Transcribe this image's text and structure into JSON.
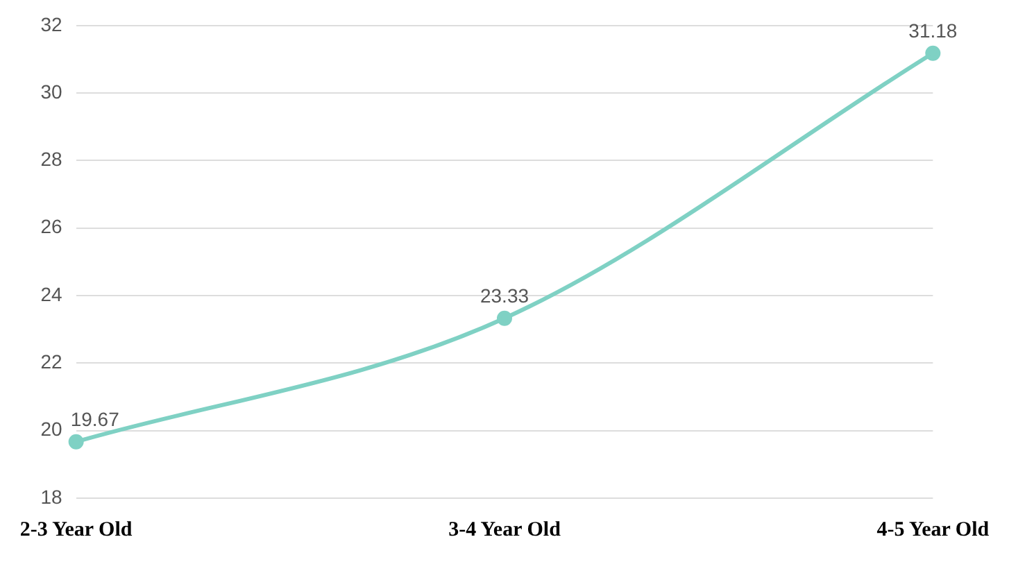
{
  "chart_data": {
    "type": "line",
    "categories": [
      "2-3 Year Old",
      "3-4 Year Old",
      "4-5 Year Old"
    ],
    "series": [
      {
        "color": "#7fd1c4",
        "values": [
          19.67,
          23.33,
          31.18
        ]
      }
    ],
    "ylim": [
      18,
      32
    ],
    "yticks": [
      18,
      20,
      22,
      24,
      26,
      28,
      30,
      32
    ],
    "grid": "y",
    "legend": false,
    "marker": "circle",
    "line_style": "solid",
    "data_labels": true
  }
}
